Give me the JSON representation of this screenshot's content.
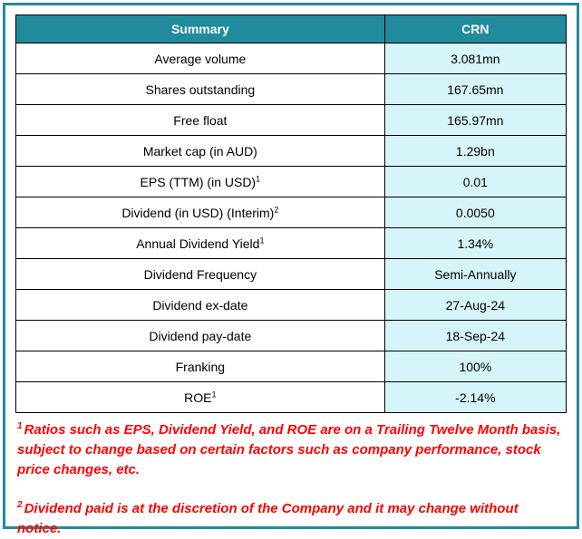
{
  "theme": {
    "header_bg": "#218B9D",
    "header_text": "#FFFFFF",
    "value_column_bg": "#D6F5F8",
    "outer_border": "#218B9D",
    "cell_border": "#000000",
    "footnote_color": "#FF0000"
  },
  "chart_data": {
    "type": "table",
    "columns": [
      "Summary",
      "CRN"
    ],
    "rows": [
      {
        "label": "Average volume",
        "sup": "",
        "value": "3.081mn"
      },
      {
        "label": "Shares outstanding",
        "sup": "",
        "value": "167.65mn"
      },
      {
        "label": "Free float",
        "sup": "",
        "value": "165.97mn"
      },
      {
        "label": "Market cap (in AUD)",
        "sup": "",
        "value": "1.29bn"
      },
      {
        "label": "EPS (TTM) (in USD)",
        "sup": "1",
        "value": "0.01"
      },
      {
        "label": "Dividend (in USD) (Interim)",
        "sup": "2",
        "value": "0.0050"
      },
      {
        "label": "Annual Dividend Yield",
        "sup": "1",
        "value": "1.34%"
      },
      {
        "label": "Dividend Frequency",
        "sup": "",
        "value": "Semi-Annually"
      },
      {
        "label": "Dividend ex-date",
        "sup": "",
        "value": "27-Aug-24"
      },
      {
        "label": "Dividend pay-date",
        "sup": "",
        "value": "18-Sep-24"
      },
      {
        "label": "Franking",
        "sup": "",
        "value": "100%"
      },
      {
        "label": "ROE",
        "sup": "1",
        "value": "-2.14%"
      }
    ]
  },
  "footnotes": [
    {
      "sup": "1",
      "text": "Ratios such as EPS, Dividend Yield, and ROE are on a Trailing Twelve Month basis, subject to change based on certain factors such as company performance, stock price changes, etc."
    },
    {
      "sup": "2",
      "text": "Dividend paid is at the discretion of the Company and it may change without notice."
    }
  ]
}
